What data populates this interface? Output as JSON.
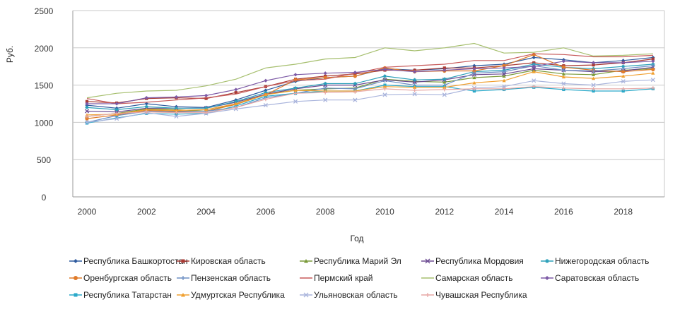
{
  "chart_data": {
    "type": "line",
    "title": "",
    "xlabel": "Год",
    "ylabel": "Руб.",
    "ylim": [
      0,
      2500
    ],
    "yticks": [
      0,
      500,
      1000,
      1500,
      2000,
      2500
    ],
    "xticks": [
      2000,
      2002,
      2004,
      2006,
      2008,
      2010,
      2012,
      2014,
      2016,
      2018
    ],
    "grid": "horizontal",
    "legend": "bottom",
    "x": [
      2000,
      2001,
      2002,
      2003,
      2004,
      2005,
      2006,
      2007,
      2008,
      2009,
      2010,
      2011,
      2012,
      2013,
      2014,
      2015,
      2016,
      2017,
      2018,
      2019
    ],
    "series": [
      {
        "name": "Республика Башкортостан",
        "color": "#2e5a9e",
        "marker": "diamond",
        "values": [
          1230,
          1190,
          1250,
          1210,
          1200,
          1300,
          1430,
          1550,
          1600,
          1620,
          1720,
          1700,
          1720,
          1760,
          1780,
          1870,
          1840,
          1800,
          1830,
          1870
        ]
      },
      {
        "name": "Кировская область",
        "color": "#a93a34",
        "marker": "square",
        "values": [
          1280,
          1260,
          1320,
          1330,
          1320,
          1400,
          1480,
          1580,
          1620,
          1650,
          1700,
          1700,
          1730,
          1730,
          1760,
          1800,
          1760,
          1770,
          1800,
          1850
        ]
      },
      {
        "name": "Республика Марий Эл",
        "color": "#7a9a3a",
        "marker": "triangle",
        "values": [
          1080,
          1120,
          1180,
          1170,
          1150,
          1250,
          1380,
          1430,
          1450,
          1460,
          1580,
          1550,
          1540,
          1600,
          1620,
          1700,
          1650,
          1640,
          1700,
          1720
        ]
      },
      {
        "name": "Республика Мордовия",
        "color": "#6b4a91",
        "marker": "x",
        "values": [
          1150,
          1140,
          1190,
          1190,
          1190,
          1270,
          1380,
          1450,
          1500,
          1500,
          1570,
          1540,
          1570,
          1640,
          1650,
          1720,
          1700,
          1680,
          1690,
          1740
        ]
      },
      {
        "name": "Нижегородская область",
        "color": "#2a9fb9",
        "marker": "star",
        "values": [
          1200,
          1170,
          1210,
          1190,
          1190,
          1280,
          1400,
          1460,
          1520,
          1520,
          1620,
          1570,
          1580,
          1680,
          1700,
          1780,
          1740,
          1720,
          1750,
          1780
        ]
      },
      {
        "name": "Оренбургская область",
        "color": "#e07b2a",
        "marker": "circle",
        "values": [
          1050,
          1100,
          1160,
          1150,
          1150,
          1240,
          1370,
          1570,
          1600,
          1620,
          1730,
          1680,
          1690,
          1690,
          1760,
          1910,
          1740,
          1700,
          1680,
          1710
        ]
      },
      {
        "name": "Пензенская область",
        "color": "#6d8fc4",
        "marker": "plus",
        "values": [
          1000,
          1090,
          1150,
          1140,
          1150,
          1200,
          1330,
          1390,
          1460,
          1450,
          1560,
          1500,
          1500,
          1660,
          1680,
          1760,
          1700,
          1690,
          1720,
          1760
        ]
      },
      {
        "name": "Пермский край",
        "color": "#c75a5a",
        "marker": "none",
        "values": [
          1320,
          1250,
          1270,
          1300,
          1330,
          1380,
          1480,
          1560,
          1580,
          1660,
          1740,
          1760,
          1780,
          1830,
          1830,
          1920,
          1910,
          1880,
          1880,
          1900
        ]
      },
      {
        "name": "Самарская область",
        "color": "#a6bf6e",
        "marker": "none",
        "values": [
          1330,
          1390,
          1420,
          1430,
          1490,
          1580,
          1730,
          1780,
          1850,
          1870,
          2000,
          1960,
          2000,
          2060,
          1930,
          1940,
          2000,
          1890,
          1900,
          1920
        ]
      },
      {
        "name": "Саратовская область",
        "color": "#7d5aa6",
        "marker": "diamond",
        "values": [
          1250,
          1250,
          1330,
          1340,
          1360,
          1440,
          1560,
          1640,
          1660,
          1670,
          1710,
          1680,
          1700,
          1720,
          1730,
          1750,
          1820,
          1800,
          1800,
          1820
        ]
      },
      {
        "name": "Республика Татарстан",
        "color": "#2aa9c9",
        "marker": "square",
        "values": [
          990,
          1060,
          1120,
          1110,
          1120,
          1220,
          1350,
          1390,
          1420,
          1420,
          1500,
          1480,
          1480,
          1420,
          1440,
          1470,
          1440,
          1420,
          1420,
          1450
        ]
      },
      {
        "name": "Удмуртская Республика",
        "color": "#f0a030",
        "marker": "triangle",
        "values": [
          1100,
          1110,
          1170,
          1160,
          1170,
          1250,
          1370,
          1430,
          1420,
          1420,
          1480,
          1470,
          1470,
          1530,
          1560,
          1680,
          1610,
          1590,
          1620,
          1660
        ]
      },
      {
        "name": "Ульяновская область",
        "color": "#a9b4dc",
        "marker": "x",
        "values": [
          1000,
          1050,
          1130,
          1080,
          1120,
          1180,
          1230,
          1280,
          1300,
          1300,
          1370,
          1380,
          1370,
          1460,
          1480,
          1560,
          1520,
          1500,
          1550,
          1570
        ]
      },
      {
        "name": "Чувашская Республика",
        "color": "#e7a8a6",
        "marker": "plus",
        "values": [
          1080,
          1120,
          1140,
          1130,
          1130,
          1200,
          1310,
          1390,
          1400,
          1410,
          1450,
          1430,
          1440,
          1450,
          1450,
          1480,
          1460,
          1450,
          1450,
          1460
        ]
      }
    ]
  }
}
